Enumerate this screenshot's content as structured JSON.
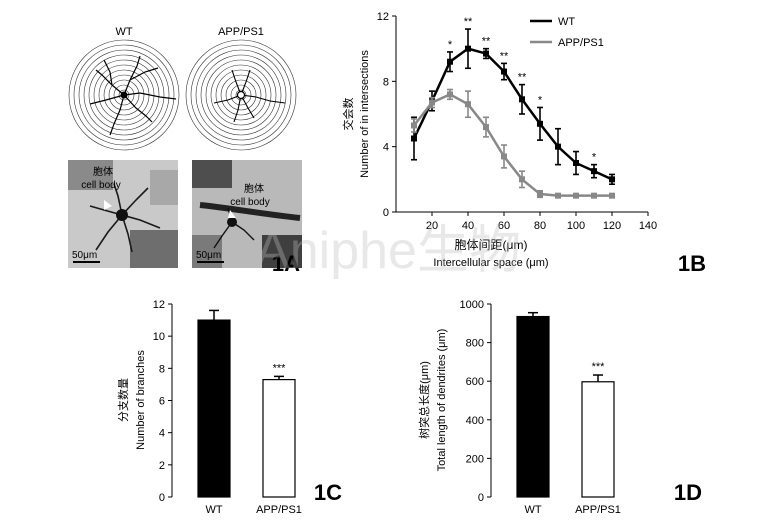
{
  "watermark": "Aniphe生物",
  "panel_1A": {
    "label": "1A",
    "sholl_titles": [
      "WT",
      "APP/PS1"
    ],
    "micrograph_labels": {
      "cell_body_cn": "胞体",
      "cell_body_en": "cell body",
      "scale_bar": "50μm"
    }
  },
  "chart_data": [
    {
      "id": "1B",
      "type": "line",
      "panel_label": "1B",
      "xlabel_cn": "胞体间距(μm)",
      "xlabel_en": "Intercellular space (μm)",
      "ylabel_cn": "交会数",
      "ylabel_en": "Number of in intersections",
      "xlim": [
        0,
        140
      ],
      "ylim": [
        0,
        12
      ],
      "xticks": [
        20,
        40,
        60,
        80,
        100,
        120,
        140
      ],
      "yticks": [
        0,
        4,
        8,
        12
      ],
      "legend_position": "top-right",
      "series": [
        {
          "name": "WT",
          "color": "#000000",
          "x": [
            10,
            20,
            30,
            40,
            50,
            60,
            70,
            80,
            90,
            100,
            110,
            120
          ],
          "y": [
            4.5,
            6.8,
            9.2,
            10.0,
            9.7,
            8.6,
            6.9,
            5.4,
            4.0,
            3.0,
            2.5,
            2.0
          ],
          "err": [
            1.3,
            0.6,
            0.6,
            1.2,
            0.3,
            0.5,
            0.9,
            1.0,
            1.1,
            0.7,
            0.4,
            0.3
          ],
          "significance": [
            "",
            "",
            "*",
            "**",
            "**",
            "**",
            "**",
            "*",
            "",
            "",
            "*",
            ""
          ]
        },
        {
          "name": "APP/PS1",
          "color": "#888888",
          "x": [
            10,
            20,
            30,
            40,
            50,
            60,
            70,
            80,
            90,
            100,
            110,
            120
          ],
          "y": [
            5.3,
            6.7,
            7.2,
            6.6,
            5.2,
            3.4,
            2.0,
            1.1,
            1.0,
            1.0,
            1.0,
            1.0
          ],
          "err": [
            0.4,
            0.3,
            0.3,
            0.8,
            0.6,
            0.7,
            0.5,
            0.2,
            0.1,
            0.1,
            0.1,
            0.1
          ]
        }
      ]
    },
    {
      "id": "1C",
      "type": "bar",
      "panel_label": "1C",
      "categories": [
        "WT",
        "APP/PS1"
      ],
      "values": [
        11.0,
        7.3
      ],
      "errors": [
        0.6,
        0.2
      ],
      "significance": [
        "",
        "***"
      ],
      "fills": [
        "#000000",
        "#ffffff"
      ],
      "ylabel_cn": "分支数量",
      "ylabel_en": "Number of branches",
      "ylim": [
        0,
        12
      ],
      "yticks": [
        0,
        2,
        4,
        6,
        8,
        10,
        12
      ]
    },
    {
      "id": "1D",
      "type": "bar",
      "panel_label": "1D",
      "categories": [
        "WT",
        "APP/PS1"
      ],
      "values": [
        935,
        597
      ],
      "errors": [
        20,
        35
      ],
      "significance": [
        "",
        "***"
      ],
      "fills": [
        "#000000",
        "#ffffff"
      ],
      "ylabel_cn": "树突总长度(μm)",
      "ylabel_en": "Total length of dendrites (μm)",
      "ylim": [
        0,
        1000
      ],
      "yticks": [
        0,
        200,
        400,
        600,
        800,
        1000
      ]
    }
  ]
}
